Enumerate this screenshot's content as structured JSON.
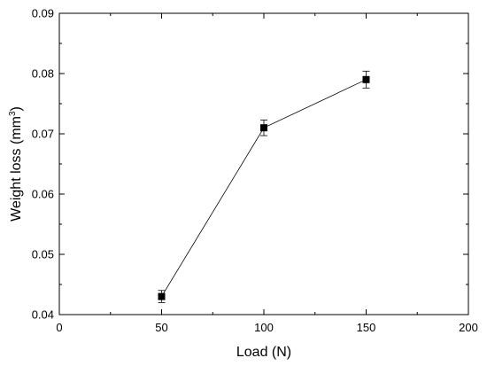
{
  "chart_data": {
    "type": "line",
    "title": "",
    "xlabel": "Load (N)",
    "ylabel_main": "Weight loss (mm",
    "ylabel_sup": "3",
    "ylabel_close": ")",
    "xlim": [
      0,
      200
    ],
    "ylim": [
      0.04,
      0.09
    ],
    "x_ticks": [
      0,
      50,
      100,
      150,
      200
    ],
    "x_tick_labels": [
      "0",
      "50",
      "100",
      "150",
      "200"
    ],
    "y_ticks": [
      0.04,
      0.05,
      0.06,
      0.07,
      0.08,
      0.09
    ],
    "y_tick_labels": [
      "0.04",
      "0.05",
      "0.06",
      "0.07",
      "0.08",
      "0.09"
    ],
    "grid": false,
    "legend": "none",
    "series": [
      {
        "x": [
          50,
          100,
          150
        ],
        "y": [
          0.043,
          0.071,
          0.079
        ],
        "error": [
          0.001,
          0.0013,
          0.0014
        ],
        "marker": "square",
        "color": "#000000"
      }
    ]
  }
}
